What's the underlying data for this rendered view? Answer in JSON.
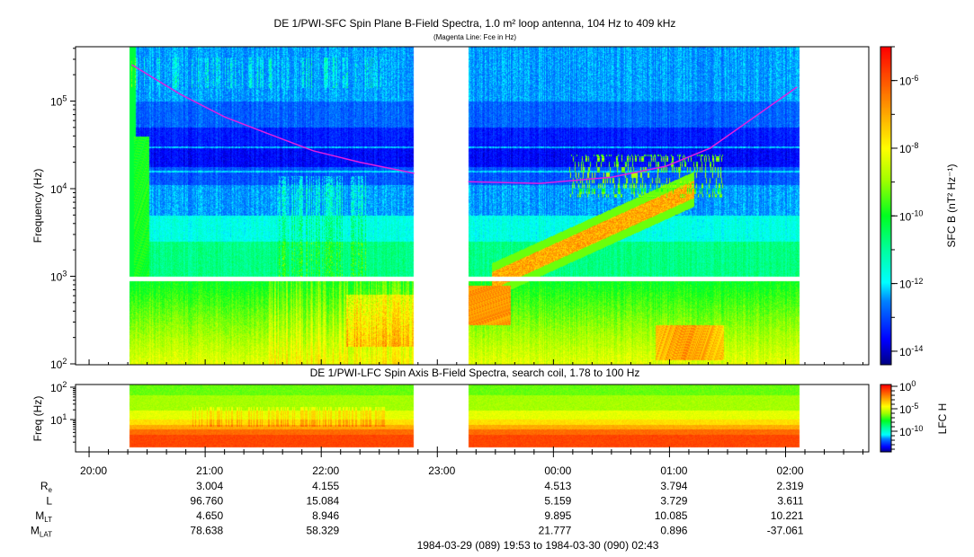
{
  "title": "DE 1/PWI-SFC  Spin Plane B-Field Spectra, 1.0 m² loop antenna, 104 Hz to 409 kHz",
  "subtitle": "(Magenta Line: Fce in Hz)",
  "lfc_title": "DE 1/PWI-LFC  Spin Axis B-Field Spectra, search coil, 1.78 to 100 Hz",
  "colors": {
    "fce_line": "#e020e0",
    "background": "#ffffff"
  },
  "chart_data": [
    {
      "type": "heatmap",
      "name": "SFC spin plane B-field spectrogram",
      "ylabel": "Frequency (Hz)",
      "yscale": "log",
      "ylim": [
        100,
        417000
      ],
      "yticks": [
        {
          "base": "10",
          "exp": "2",
          "value": 100
        },
        {
          "base": "10",
          "exp": "3",
          "value": 1000
        },
        {
          "base": "10",
          "exp": "4",
          "value": 10000
        },
        {
          "base": "10",
          "exp": "5",
          "value": 100000
        }
      ],
      "colorbar": {
        "label": "SFC B (nT² Hz⁻¹)",
        "scale": "log",
        "range_log10": [
          -14.4,
          -5.0
        ],
        "ticks": [
          {
            "base": "10",
            "exp": "-6",
            "value": -6
          },
          {
            "base": "10",
            "exp": "-8",
            "value": -8
          },
          {
            "base": "10",
            "exp": "-10",
            "value": -10
          },
          {
            "base": "10",
            "exp": "-12",
            "value": -12
          },
          {
            "base": "10",
            "exp": "-14",
            "value": -14
          }
        ]
      },
      "data_segments": [
        [
          "20:21",
          "22:48"
        ],
        [
          "23:16",
          "02:07"
        ]
      ],
      "band_gap_hz": [
        900,
        1000
      ],
      "fce_line": {
        "name": "Fce (Hz)",
        "points": [
          [
            "20:22",
            260000
          ],
          [
            "20:47",
            120000
          ],
          [
            "21:10",
            66000
          ],
          [
            "21:33",
            42000
          ],
          [
            "21:56",
            27000
          ],
          [
            "22:20",
            20000
          ],
          [
            "22:48",
            15000
          ],
          [
            "23:16",
            12000
          ],
          [
            "23:53",
            11500
          ],
          [
            "00:30",
            13500
          ],
          [
            "00:58",
            18000
          ],
          [
            "01:21",
            29000
          ],
          [
            "01:44",
            66000
          ],
          [
            "02:06",
            145000
          ]
        ]
      }
    },
    {
      "type": "heatmap",
      "name": "LFC spin axis B-field spectrogram",
      "ylabel": "Freq (Hz)",
      "yscale": "log",
      "ylim": [
        1.78,
        100
      ],
      "yticks": [
        {
          "base": "10",
          "exp": "1",
          "value": 10
        },
        {
          "base": "10",
          "exp": "2",
          "value": 100
        }
      ],
      "colorbar": {
        "label": "LFC H",
        "scale": "log",
        "range_log10": [
          -14.6,
          0.4
        ],
        "ticks": [
          {
            "base": "10",
            "exp": "0",
            "value": 0
          },
          {
            "base": "10",
            "exp": "-5",
            "value": -5
          },
          {
            "base": "10",
            "exp": "-10",
            "value": -10
          }
        ]
      },
      "data_segments": [
        [
          "20:21",
          "22:48"
        ],
        [
          "23:16",
          "02:07"
        ]
      ]
    }
  ],
  "time_axis": {
    "start": "19:53",
    "end": "02:43",
    "labels": [
      "20:00",
      "21:00",
      "22:00",
      "23:00",
      "00:00",
      "01:00",
      "02:00"
    ]
  },
  "ephemeris": {
    "times": [
      "21:00",
      "22:00",
      "00:00",
      "01:00",
      "02:00"
    ],
    "rows": [
      {
        "label": "R",
        "sub": "e",
        "values": [
          "3.004",
          "4.155",
          "4.513",
          "3.794",
          "2.319"
        ]
      },
      {
        "label": "L",
        "sub": "",
        "values": [
          "96.760",
          "15.084",
          "5.159",
          "3.729",
          "3.611"
        ]
      },
      {
        "label": "M",
        "sub": "LT",
        "values": [
          "4.650",
          "8.946",
          "9.895",
          "10.085",
          "10.221"
        ]
      },
      {
        "label": "M",
        "sub": "LAT",
        "values": [
          "78.638",
          "58.329",
          "21.777",
          "0.896",
          "-37.061"
        ]
      }
    ]
  },
  "date_range": "1984-03-29 (089) 19:53 to 1984-03-30 (090) 02:43"
}
